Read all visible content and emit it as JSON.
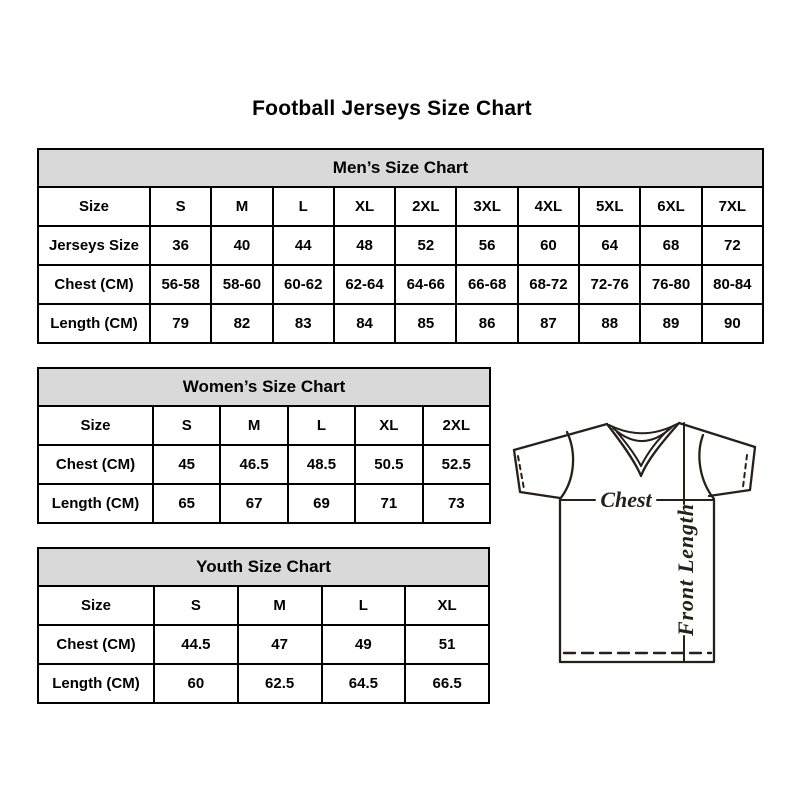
{
  "page_title": "Football Jerseys Size Chart",
  "tables": {
    "mens": {
      "title": "Men’s Size Chart",
      "rows": [
        [
          "Size",
          "S",
          "M",
          "L",
          "XL",
          "2XL",
          "3XL",
          "4XL",
          "5XL",
          "6XL",
          "7XL"
        ],
        [
          "Jerseys Size",
          "36",
          "40",
          "44",
          "48",
          "52",
          "56",
          "60",
          "64",
          "68",
          "72"
        ],
        [
          "Chest (CM)",
          "56-58",
          "58-60",
          "60-62",
          "62-64",
          "64-66",
          "66-68",
          "68-72",
          "72-76",
          "76-80",
          "80-84"
        ],
        [
          "Length (CM)",
          "79",
          "82",
          "83",
          "84",
          "85",
          "86",
          "87",
          "88",
          "89",
          "90"
        ]
      ]
    },
    "womens": {
      "title": "Women’s Size Chart",
      "rows": [
        [
          "Size",
          "S",
          "M",
          "L",
          "XL",
          "2XL"
        ],
        [
          "Chest (CM)",
          "45",
          "46.5",
          "48.5",
          "50.5",
          "52.5"
        ],
        [
          "Length (CM)",
          "65",
          "67",
          "69",
          "71",
          "73"
        ]
      ]
    },
    "youth": {
      "title": "Youth Size Chart",
      "rows": [
        [
          "Size",
          "S",
          "M",
          "L",
          "XL"
        ],
        [
          "Chest (CM)",
          "44.5",
          "47",
          "49",
          "51"
        ],
        [
          "Length (CM)",
          "60",
          "62.5",
          "64.5",
          "66.5"
        ]
      ]
    }
  },
  "diagram": {
    "chest_label": "Chest",
    "front_length_label": "Front Length"
  },
  "colors": {
    "table_header_bg": "#d9d9d9",
    "border": "#000000",
    "text": "#000000",
    "diagram_stroke": "#262019"
  }
}
